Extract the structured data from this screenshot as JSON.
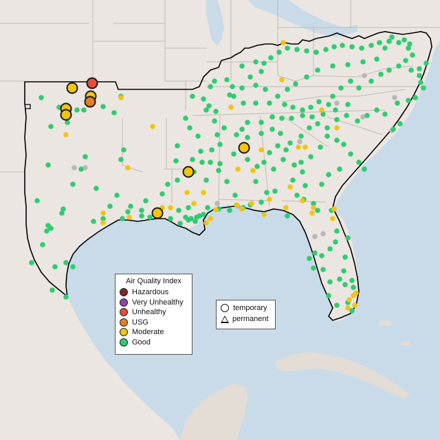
{
  "map": {
    "colors": {
      "water": "#c9dbe8",
      "land": "#ebe6e1",
      "land_shade": "#dcd6cf",
      "state_border": "#b9b4ad",
      "region_outline": "#000000"
    },
    "aqi_legend": {
      "title": "Air Quality Index",
      "categories": [
        {
          "label": "Hazardous",
          "color": "#7a2a2a"
        },
        {
          "label": "Very Unhealthy",
          "color": "#8e44ad"
        },
        {
          "label": "Unhealthy",
          "color": "#e74c3c"
        },
        {
          "label": "USG",
          "color": "#e67e22"
        },
        {
          "label": "Moderate",
          "color": "#f1c40f"
        },
        {
          "label": "Good",
          "color": "#2ecc71"
        }
      ]
    },
    "type_legend": {
      "temporary_label": "temporary",
      "permanent_label": "permanent"
    },
    "no_data_color": "#b8b8b8",
    "counts": {
      "good": 260,
      "moderate": 42,
      "large_moderate": 7,
      "usg": 1,
      "unhealthy": 1,
      "no_data": 12
    }
  }
}
